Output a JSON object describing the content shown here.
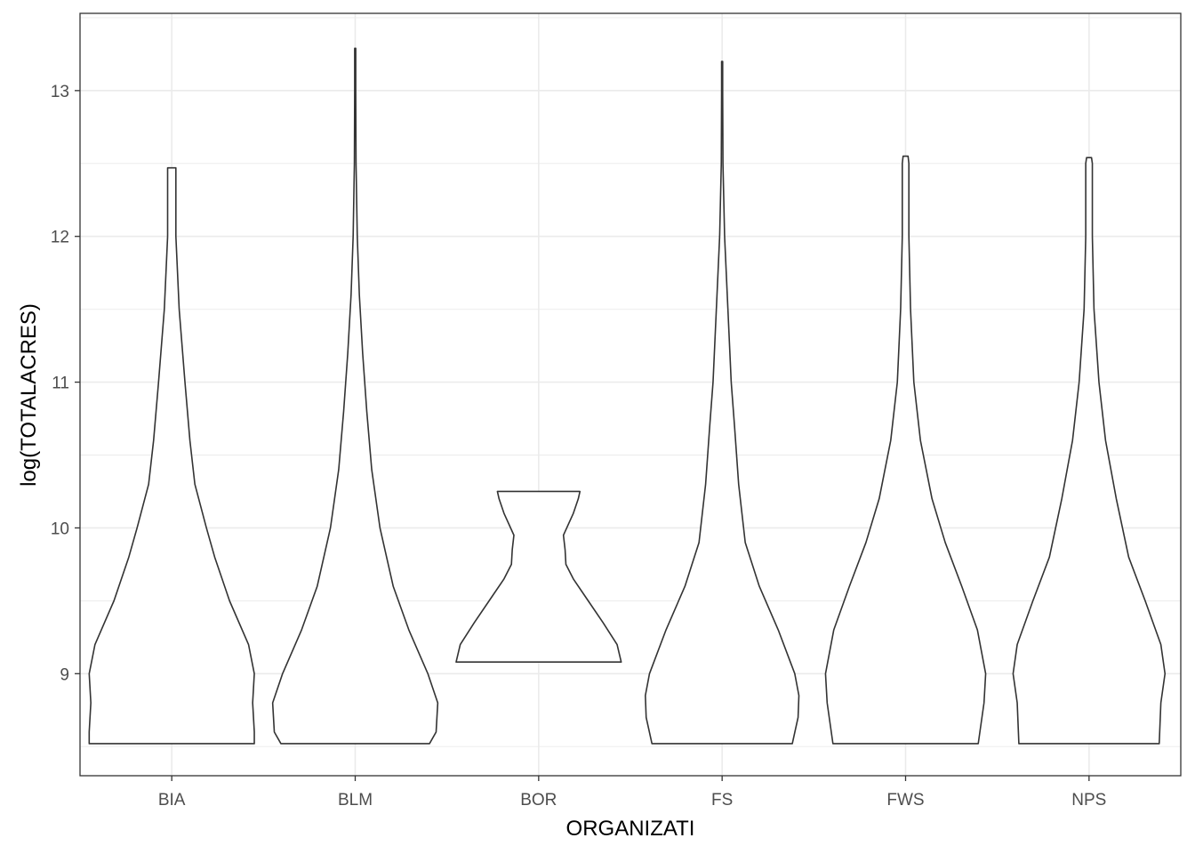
{
  "chart_data": {
    "type": "violin",
    "xlabel": "ORGANIZATI",
    "ylabel": "log(TOTALACRES)",
    "ylim": [
      8.3,
      13.53
    ],
    "y_ticks": [
      9,
      10,
      11,
      12,
      13
    ],
    "y_tick_labels": [
      "9",
      "10",
      "11",
      "12",
      "13"
    ],
    "grid": true,
    "categories": [
      "BIA",
      "BLM",
      "BOR",
      "FS",
      "FWS",
      "NPS"
    ],
    "series": [
      {
        "category": "BIA",
        "min": 8.52,
        "max": 12.47,
        "profile": [
          [
            8.52,
            1.0
          ],
          [
            8.6,
            1.0
          ],
          [
            8.8,
            0.98
          ],
          [
            9.0,
            1.0
          ],
          [
            9.2,
            0.93
          ],
          [
            9.5,
            0.7
          ],
          [
            9.8,
            0.52
          ],
          [
            10.0,
            0.42
          ],
          [
            10.3,
            0.28
          ],
          [
            10.6,
            0.22
          ],
          [
            11.0,
            0.16
          ],
          [
            11.5,
            0.09
          ],
          [
            12.0,
            0.05
          ],
          [
            12.4,
            0.05
          ],
          [
            12.47,
            0.05
          ]
        ]
      },
      {
        "category": "BLM",
        "min": 8.52,
        "max": 13.29,
        "profile": [
          [
            8.52,
            0.9
          ],
          [
            8.6,
            0.98
          ],
          [
            8.8,
            1.0
          ],
          [
            9.0,
            0.88
          ],
          [
            9.3,
            0.65
          ],
          [
            9.6,
            0.46
          ],
          [
            10.0,
            0.3
          ],
          [
            10.4,
            0.2
          ],
          [
            10.8,
            0.14
          ],
          [
            11.2,
            0.09
          ],
          [
            11.6,
            0.05
          ],
          [
            12.0,
            0.025
          ],
          [
            12.5,
            0.01
          ],
          [
            13.0,
            0.005
          ],
          [
            13.29,
            0.005
          ]
        ]
      },
      {
        "category": "BOR",
        "min": 9.08,
        "max": 10.25,
        "profile": [
          [
            9.08,
            1.0
          ],
          [
            9.2,
            0.95
          ],
          [
            9.35,
            0.78
          ],
          [
            9.5,
            0.6
          ],
          [
            9.65,
            0.42
          ],
          [
            9.75,
            0.33
          ],
          [
            9.85,
            0.32
          ],
          [
            9.95,
            0.3
          ],
          [
            10.1,
            0.42
          ],
          [
            10.2,
            0.48
          ],
          [
            10.25,
            0.5
          ]
        ]
      },
      {
        "category": "FS",
        "min": 8.52,
        "max": 13.2,
        "profile": [
          [
            8.52,
            0.85
          ],
          [
            8.7,
            0.92
          ],
          [
            8.85,
            0.93
          ],
          [
            9.0,
            0.88
          ],
          [
            9.3,
            0.68
          ],
          [
            9.6,
            0.45
          ],
          [
            9.9,
            0.28
          ],
          [
            10.3,
            0.2
          ],
          [
            10.7,
            0.15
          ],
          [
            11.0,
            0.11
          ],
          [
            11.5,
            0.07
          ],
          [
            12.0,
            0.03
          ],
          [
            12.5,
            0.01
          ],
          [
            13.0,
            0.005
          ],
          [
            13.2,
            0.005
          ]
        ]
      },
      {
        "category": "FWS",
        "min": 8.52,
        "max": 12.55,
        "profile": [
          [
            8.52,
            0.88
          ],
          [
            8.8,
            0.95
          ],
          [
            9.0,
            0.97
          ],
          [
            9.3,
            0.87
          ],
          [
            9.6,
            0.68
          ],
          [
            9.9,
            0.48
          ],
          [
            10.2,
            0.32
          ],
          [
            10.6,
            0.18
          ],
          [
            11.0,
            0.1
          ],
          [
            11.5,
            0.06
          ],
          [
            12.0,
            0.04
          ],
          [
            12.5,
            0.04
          ],
          [
            12.55,
            0.03
          ]
        ]
      },
      {
        "category": "NPS",
        "min": 8.52,
        "max": 12.54,
        "profile": [
          [
            8.52,
            0.85
          ],
          [
            8.8,
            0.87
          ],
          [
            9.0,
            0.92
          ],
          [
            9.2,
            0.87
          ],
          [
            9.5,
            0.68
          ],
          [
            9.8,
            0.48
          ],
          [
            10.2,
            0.33
          ],
          [
            10.6,
            0.2
          ],
          [
            11.0,
            0.12
          ],
          [
            11.5,
            0.06
          ],
          [
            12.0,
            0.04
          ],
          [
            12.5,
            0.04
          ],
          [
            12.54,
            0.03
          ]
        ]
      }
    ],
    "colors": {
      "outline": "#333333",
      "grid": "#ebebeb",
      "panel_border": "#333333",
      "tick_text": "#4d4d4d"
    }
  }
}
